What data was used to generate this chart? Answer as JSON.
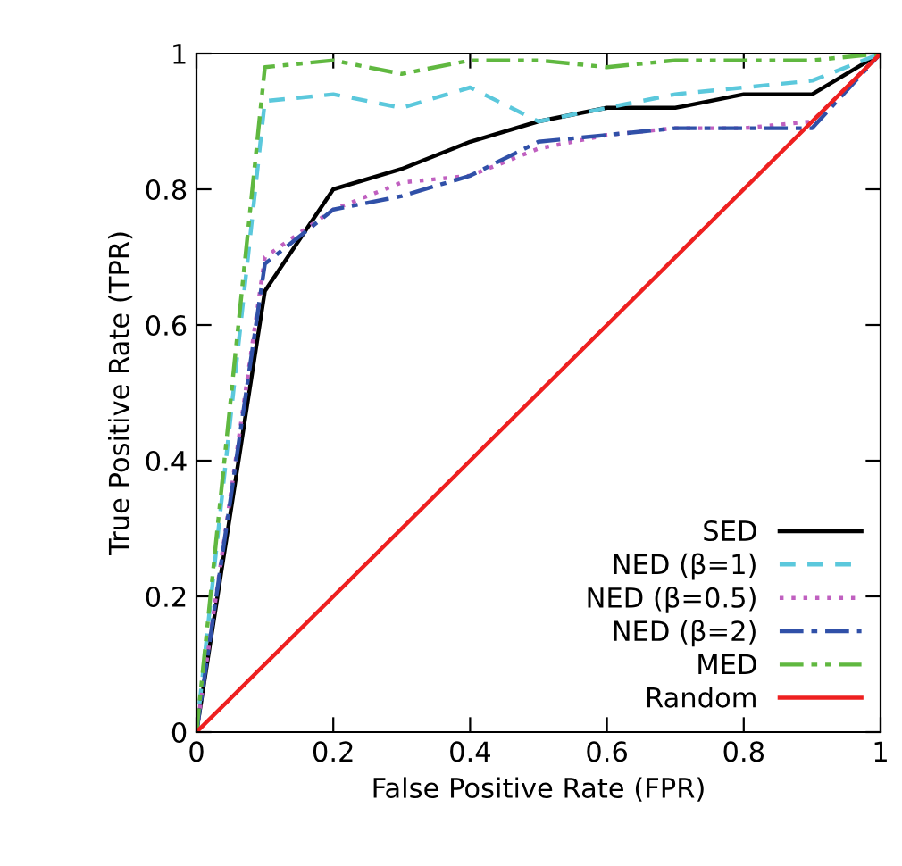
{
  "chart_data": {
    "type": "line",
    "xlabel": "False Positive Rate (FPR)",
    "ylabel": "True Positive Rate (TPR)",
    "x": [
      0,
      0.1,
      0.2,
      0.3,
      0.4,
      0.5,
      0.6,
      0.7,
      0.8,
      0.9,
      1
    ],
    "xlim": [
      0,
      1
    ],
    "ylim": [
      0,
      1
    ],
    "xticks": [
      0,
      0.2,
      0.4,
      0.6,
      0.8,
      1
    ],
    "yticks": [
      0,
      0.2,
      0.4,
      0.6,
      0.8,
      1
    ],
    "grid": false,
    "legend": "bottom right",
    "marker": "none",
    "series": [
      {
        "name": "SED",
        "color": "#000000",
        "line_style": "solid",
        "values": [
          0,
          0.65,
          0.8,
          0.83,
          0.87,
          0.9,
          0.92,
          0.92,
          0.94,
          0.94,
          1
        ]
      },
      {
        "name": "NED (β=1)",
        "color": "#5bc8dc",
        "line_style": "dashed",
        "values": [
          0,
          0.93,
          0.94,
          0.92,
          0.95,
          0.9,
          0.92,
          0.94,
          0.95,
          0.96,
          1
        ]
      },
      {
        "name": "NED (β=0.5)",
        "color": "#c060c0",
        "line_style": "dotted",
        "values": [
          0,
          0.7,
          0.77,
          0.81,
          0.82,
          0.86,
          0.88,
          0.89,
          0.89,
          0.9,
          1
        ]
      },
      {
        "name": "NED (β=2)",
        "color": "#3050a8",
        "line_style": "dashdot",
        "values": [
          0,
          0.69,
          0.77,
          0.79,
          0.82,
          0.87,
          0.88,
          0.89,
          0.89,
          0.89,
          1
        ]
      },
      {
        "name": "MED",
        "color": "#60b840",
        "line_style": "dashdotdot",
        "values": [
          0,
          0.98,
          0.99,
          0.97,
          0.99,
          0.99,
          0.98,
          0.99,
          0.99,
          0.99,
          1
        ]
      },
      {
        "name": "Random",
        "color": "#ee2020",
        "line_style": "solid",
        "x": [
          0,
          1
        ],
        "values": [
          0,
          1
        ]
      }
    ]
  }
}
